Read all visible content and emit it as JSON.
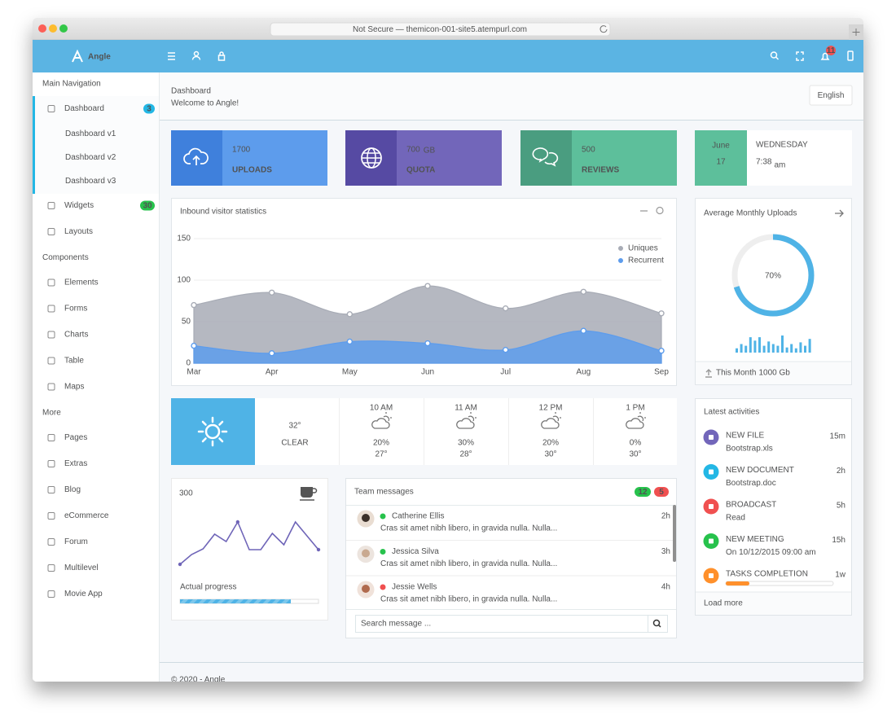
{
  "browser": {
    "address": "Not Secure — themicon-001-site5.atempurl.com"
  },
  "header": {
    "brand": "Angle",
    "notifications": 11
  },
  "sidebar": {
    "sections": [
      {
        "heading": "Main Navigation",
        "items": [
          {
            "label": "Dashboard",
            "badge": 3,
            "badge_color": "#23b7e5",
            "active": true,
            "children": [
              {
                "label": "Dashboard v1",
                "active": true
              },
              {
                "label": "Dashboard v2"
              },
              {
                "label": "Dashboard v3"
              }
            ]
          },
          {
            "label": "Widgets",
            "badge": 30,
            "badge_color": "#27c24c"
          },
          {
            "label": "Layouts"
          }
        ]
      },
      {
        "heading": "Components",
        "items": [
          {
            "label": "Elements"
          },
          {
            "label": "Forms"
          },
          {
            "label": "Charts"
          },
          {
            "label": "Table"
          },
          {
            "label": "Maps"
          }
        ]
      },
      {
        "heading": "More",
        "items": [
          {
            "label": "Pages"
          },
          {
            "label": "Extras"
          },
          {
            "label": "Blog"
          },
          {
            "label": "eCommerce"
          },
          {
            "label": "Forum"
          },
          {
            "label": "Multilevel"
          },
          {
            "label": "Movie App"
          }
        ]
      }
    ]
  },
  "page": {
    "title": "Dashboard",
    "subtitle": "Welcome to Angle!",
    "language": "English",
    "footer": "© 2020 - Angle"
  },
  "stats": [
    {
      "value": 1700,
      "label": "UPLOADS"
    },
    {
      "value": 700,
      "unit": "GB",
      "label": "QUOTA"
    },
    {
      "value": 500,
      "label": "REVIEWS"
    }
  ],
  "clock": {
    "month": "June",
    "day": 17,
    "weekday": "WEDNESDAY",
    "time": "7:38",
    "period": "am"
  },
  "chart_data": [
    {
      "type": "area",
      "title": "Inbound visitor statistics",
      "categories": [
        "Mar",
        "Apr",
        "May",
        "Jun",
        "Jul",
        "Aug",
        "Sep"
      ],
      "series": [
        {
          "name": "Uniques",
          "color": "#a8acb6",
          "values": [
            70,
            85,
            59,
            93,
            66,
            86,
            60
          ]
        },
        {
          "name": "Recurrent",
          "color": "#5d9cec",
          "values": [
            21,
            12,
            26,
            24,
            16,
            39,
            15
          ]
        }
      ],
      "ylim": [
        0,
        150
      ],
      "yticks": [
        0,
        50,
        100,
        150
      ],
      "grid": true,
      "legend": "top-right"
    },
    {
      "type": "gauge",
      "title": "Average Monthly Uploads",
      "value": 70,
      "value_label": "70%",
      "color": "#4fb3e6"
    },
    {
      "type": "bar",
      "values": [
        5,
        10,
        8,
        18,
        14,
        18,
        8,
        13,
        10,
        8,
        20,
        6,
        10,
        5,
        12,
        8,
        16
      ],
      "color": "#4fb3e6"
    },
    {
      "type": "line",
      "values": [
        7,
        19,
        26,
        44,
        35,
        59,
        25,
        25,
        45,
        31,
        59,
        42,
        25
      ],
      "color": "#6f65b8"
    }
  ],
  "uploads_footer": {
    "label": "This Month",
    "value": "1000 Gb"
  },
  "weather": {
    "temperature": "32°",
    "condition": "CLEAR",
    "forecast": [
      {
        "time": "10 AM",
        "chance": "20%",
        "temperature": "27°"
      },
      {
        "time": "11 AM",
        "chance": "30%",
        "temperature": "28°"
      },
      {
        "time": "12 PM",
        "chance": "20%",
        "temperature": "30°"
      },
      {
        "time": "1 PM",
        "chance": "0%",
        "temperature": "30°"
      }
    ]
  },
  "progress_card": {
    "total": 300,
    "label": "Actual progress",
    "progress": 80
  },
  "messages": {
    "title": "Team messages",
    "badges": [
      12,
      5
    ],
    "items": [
      {
        "name": "Catherine Ellis",
        "text": "Cras sit amet nibh libero, in gravida nulla. Nulla...",
        "time": "2h",
        "color": "#27c24c"
      },
      {
        "name": "Jessica Silva",
        "text": "Cras sit amet nibh libero, in gravida nulla. Nulla...",
        "time": "3h",
        "color": "#27c24c"
      },
      {
        "name": "Jessie Wells",
        "text": "Cras sit amet nibh libero, in gravida nulla. Nulla...",
        "time": "4h",
        "color": "#f05050"
      }
    ],
    "search": "Search message ..."
  },
  "activities": {
    "title": "Latest activities",
    "items": [
      {
        "title": "NEW FILE",
        "detail": "Bootstrap.xls",
        "time": "15m",
        "color": "#7266ba"
      },
      {
        "title": "NEW DOCUMENT",
        "detail": "Bootstrap.doc",
        "time": "2h",
        "color": "#23b7e5"
      },
      {
        "title": "BROADCAST",
        "detail": "Read",
        "time": "5h",
        "color": "#f05050"
      },
      {
        "title": "NEW MEETING",
        "detail": "On 10/12/2015 09:00 am",
        "time": "15h",
        "color": "#27c24c"
      },
      {
        "title": "TASKS COMPLETION",
        "progress": 22,
        "time": "1w",
        "color": "#ff902b"
      }
    ],
    "more": "Load more"
  }
}
